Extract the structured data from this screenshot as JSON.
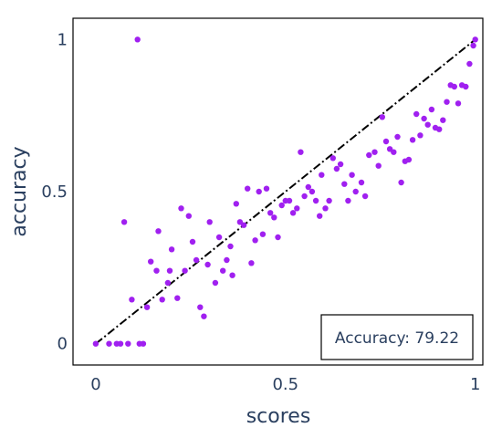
{
  "chart_data": {
    "type": "scatter",
    "xlabel": "scores",
    "ylabel": "accuracy",
    "xlim": [
      -0.06,
      1.02
    ],
    "ylim": [
      -0.07,
      1.07
    ],
    "x_ticks": [
      {
        "value": 0,
        "label": "0"
      },
      {
        "value": 0.5,
        "label": "0.5"
      },
      {
        "value": 1,
        "label": "1"
      }
    ],
    "y_ticks": [
      {
        "value": 0,
        "label": "0"
      },
      {
        "value": 0.5,
        "label": "0.5"
      },
      {
        "value": 1,
        "label": "1"
      }
    ],
    "grid": false,
    "point_color": "#a020f0",
    "reference_line": {
      "style": "dash-dot",
      "color": "#000000",
      "from": [
        0,
        0
      ],
      "to": [
        1,
        1
      ]
    },
    "annotation": {
      "text": "Accuracy: 79.22",
      "position": "bottom-right"
    },
    "points": [
      [
        0.0,
        0.0
      ],
      [
        0.035,
        0.0
      ],
      [
        0.055,
        0.0
      ],
      [
        0.065,
        0.0
      ],
      [
        0.085,
        0.0
      ],
      [
        0.115,
        0.0
      ],
      [
        0.125,
        0.0
      ],
      [
        0.11,
        1.0
      ],
      [
        0.075,
        0.4
      ],
      [
        0.095,
        0.145
      ],
      [
        0.135,
        0.12
      ],
      [
        0.145,
        0.27
      ],
      [
        0.16,
        0.24
      ],
      [
        0.165,
        0.37
      ],
      [
        0.175,
        0.145
      ],
      [
        0.19,
        0.2
      ],
      [
        0.195,
        0.24
      ],
      [
        0.2,
        0.31
      ],
      [
        0.215,
        0.15
      ],
      [
        0.225,
        0.445
      ],
      [
        0.235,
        0.24
      ],
      [
        0.245,
        0.42
      ],
      [
        0.255,
        0.335
      ],
      [
        0.265,
        0.275
      ],
      [
        0.275,
        0.12
      ],
      [
        0.285,
        0.09
      ],
      [
        0.295,
        0.26
      ],
      [
        0.3,
        0.4
      ],
      [
        0.315,
        0.2
      ],
      [
        0.325,
        0.35
      ],
      [
        0.335,
        0.24
      ],
      [
        0.345,
        0.275
      ],
      [
        0.355,
        0.32
      ],
      [
        0.36,
        0.225
      ],
      [
        0.37,
        0.46
      ],
      [
        0.38,
        0.4
      ],
      [
        0.39,
        0.39
      ],
      [
        0.4,
        0.51
      ],
      [
        0.41,
        0.265
      ],
      [
        0.42,
        0.34
      ],
      [
        0.43,
        0.5
      ],
      [
        0.44,
        0.36
      ],
      [
        0.45,
        0.51
      ],
      [
        0.46,
        0.43
      ],
      [
        0.47,
        0.415
      ],
      [
        0.48,
        0.35
      ],
      [
        0.49,
        0.455
      ],
      [
        0.5,
        0.47
      ],
      [
        0.51,
        0.47
      ],
      [
        0.52,
        0.43
      ],
      [
        0.53,
        0.445
      ],
      [
        0.54,
        0.63
      ],
      [
        0.55,
        0.485
      ],
      [
        0.56,
        0.515
      ],
      [
        0.57,
        0.5
      ],
      [
        0.58,
        0.47
      ],
      [
        0.59,
        0.42
      ],
      [
        0.595,
        0.555
      ],
      [
        0.605,
        0.445
      ],
      [
        0.615,
        0.47
      ],
      [
        0.625,
        0.61
      ],
      [
        0.635,
        0.575
      ],
      [
        0.645,
        0.59
      ],
      [
        0.655,
        0.525
      ],
      [
        0.665,
        0.47
      ],
      [
        0.675,
        0.555
      ],
      [
        0.685,
        0.5
      ],
      [
        0.7,
        0.53
      ],
      [
        0.71,
        0.485
      ],
      [
        0.72,
        0.62
      ],
      [
        0.735,
        0.63
      ],
      [
        0.745,
        0.585
      ],
      [
        0.755,
        0.745
      ],
      [
        0.765,
        0.665
      ],
      [
        0.775,
        0.64
      ],
      [
        0.785,
        0.63
      ],
      [
        0.795,
        0.68
      ],
      [
        0.805,
        0.53
      ],
      [
        0.815,
        0.6
      ],
      [
        0.825,
        0.605
      ],
      [
        0.835,
        0.67
      ],
      [
        0.845,
        0.755
      ],
      [
        0.855,
        0.685
      ],
      [
        0.865,
        0.74
      ],
      [
        0.875,
        0.72
      ],
      [
        0.885,
        0.77
      ],
      [
        0.895,
        0.71
      ],
      [
        0.905,
        0.705
      ],
      [
        0.915,
        0.735
      ],
      [
        0.925,
        0.795
      ],
      [
        0.935,
        0.85
      ],
      [
        0.945,
        0.845
      ],
      [
        0.955,
        0.79
      ],
      [
        0.965,
        0.85
      ],
      [
        0.975,
        0.845
      ],
      [
        0.985,
        0.92
      ],
      [
        0.995,
        0.98
      ],
      [
        1.0,
        1.0
      ]
    ]
  }
}
